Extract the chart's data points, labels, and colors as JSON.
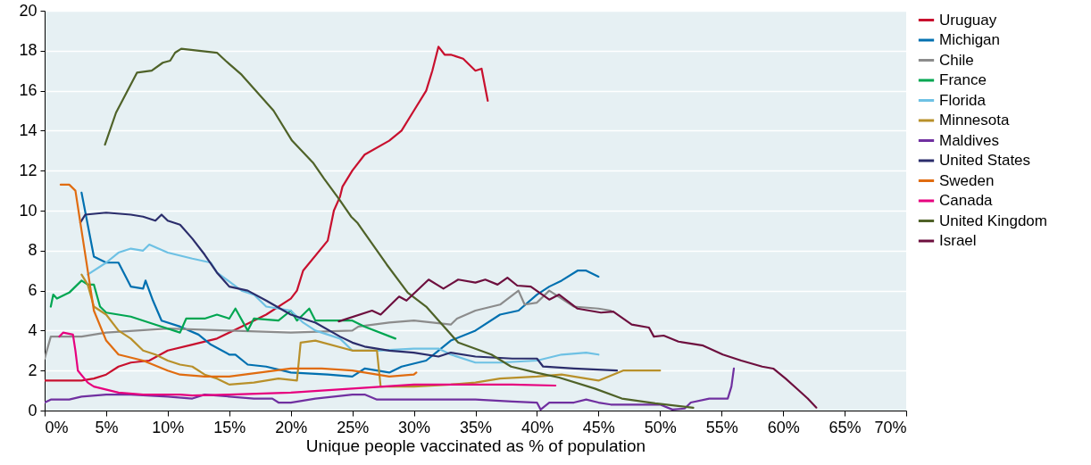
{
  "chart_data": {
    "type": "line",
    "xlabel": "Unique people vaccinated as % of population",
    "xlim": [
      0,
      70
    ],
    "ylim": [
      0,
      20
    ],
    "xticks": [
      {
        "value": 0,
        "label": "0%"
      },
      {
        "value": 5,
        "label": "5%"
      },
      {
        "value": 10,
        "label": "10%"
      },
      {
        "value": 15,
        "label": "15%"
      },
      {
        "value": 20,
        "label": "20%"
      },
      {
        "value": 25,
        "label": "25%"
      },
      {
        "value": 30,
        "label": "30%"
      },
      {
        "value": 35,
        "label": "35%"
      },
      {
        "value": 40,
        "label": "40%"
      },
      {
        "value": 45,
        "label": "45%"
      },
      {
        "value": 50,
        "label": "50%"
      },
      {
        "value": 55,
        "label": "55%"
      },
      {
        "value": 60,
        "label": "60%"
      },
      {
        "value": 65,
        "label": "65%"
      },
      {
        "value": 70,
        "label": "70%"
      }
    ],
    "yticks": [
      0,
      2,
      4,
      6,
      8,
      10,
      12,
      14,
      16,
      18,
      20
    ],
    "grid": "y",
    "legend": "top right",
    "marker": "none",
    "line_style": "solid",
    "series": [
      {
        "name": "Uruguay",
        "color": "#c8102e",
        "x": [
          0,
          3,
          4,
          5,
          6,
          7,
          8.5,
          10,
          12,
          14,
          16,
          18,
          20,
          20.5,
          21,
          23,
          23.5,
          24,
          24.2,
          25,
          26,
          28,
          29,
          30,
          31,
          31.5,
          32,
          32.5,
          33,
          34,
          35,
          35.5,
          36
        ],
        "values": [
          1.5,
          1.5,
          1.6,
          1.8,
          2.2,
          2.4,
          2.5,
          3.0,
          3.3,
          3.6,
          4.2,
          4.8,
          5.6,
          6.0,
          7.0,
          8.5,
          10.0,
          10.7,
          11.2,
          12.0,
          12.8,
          13.5,
          14.0,
          15.0,
          16.0,
          17.0,
          18.2,
          17.8,
          17.8,
          17.6,
          17.0,
          17.1,
          15.5
        ]
      },
      {
        "name": "Michigan",
        "color": "#0070b0",
        "x": [
          3,
          4,
          5,
          6,
          7,
          8,
          8.2,
          8.8,
          9.5,
          11,
          12.5,
          13.5,
          15,
          15.5,
          16.5,
          18,
          20,
          23,
          25,
          26,
          28,
          29,
          31,
          32,
          33,
          35,
          37,
          38.5,
          40,
          41,
          42,
          43.3,
          44,
          45
        ],
        "values": [
          10.9,
          7.7,
          7.4,
          7.4,
          6.2,
          6.1,
          6.5,
          5.5,
          4.5,
          4.2,
          3.8,
          3.3,
          2.8,
          2.8,
          2.3,
          2.2,
          1.9,
          1.8,
          1.7,
          2.1,
          1.9,
          2.2,
          2.5,
          3.0,
          3.5,
          4.0,
          4.8,
          5.0,
          5.8,
          6.2,
          6.5,
          7.0,
          7.0,
          6.7
        ]
      },
      {
        "name": "Chile",
        "color": "#8c8c8c",
        "x": [
          0,
          0.5,
          3,
          5,
          10,
          15,
          20,
          25,
          25.5,
          28,
          30,
          33,
          33.5,
          35,
          37,
          38.5,
          39,
          40,
          41,
          42,
          43,
          45,
          46
        ],
        "values": [
          2.6,
          3.7,
          3.7,
          3.9,
          4.1,
          4.0,
          3.9,
          4.0,
          4.2,
          4.4,
          4.5,
          4.3,
          4.6,
          5.0,
          5.3,
          6.0,
          5.3,
          5.4,
          6.0,
          5.6,
          5.2,
          5.1,
          5.0
        ]
      },
      {
        "name": "France",
        "color": "#00a651",
        "x": [
          0.5,
          0.7,
          1,
          2,
          3,
          3.5,
          4,
          4.5,
          5,
          7,
          9,
          11,
          11.5,
          13,
          14,
          15,
          15.5,
          16.5,
          17,
          19,
          20,
          20.5,
          21.5,
          22,
          25,
          26,
          28.5
        ],
        "values": [
          5.2,
          5.8,
          5.6,
          5.9,
          6.5,
          6.3,
          6.3,
          5.2,
          4.9,
          4.7,
          4.3,
          3.9,
          4.6,
          4.6,
          4.8,
          4.6,
          5.1,
          4.0,
          4.6,
          4.5,
          5.0,
          4.5,
          5.1,
          4.5,
          4.5,
          4.2,
          3.6
        ]
      },
      {
        "name": "Florida",
        "color": "#6ec1e4",
        "x": [
          3.5,
          5,
          6,
          7,
          8,
          8.5,
          10,
          12,
          13.5,
          14,
          16,
          17,
          18,
          20,
          21,
          22,
          24,
          25,
          27,
          30,
          32,
          33,
          35,
          37,
          40,
          42,
          44,
          45
        ],
        "values": [
          6.8,
          7.4,
          7.9,
          8.1,
          8.0,
          8.3,
          7.9,
          7.6,
          7.4,
          6.9,
          6.0,
          5.8,
          5.2,
          5.0,
          4.4,
          4.0,
          3.6,
          3.0,
          3.0,
          3.1,
          3.1,
          2.8,
          2.4,
          2.4,
          2.5,
          2.8,
          2.9,
          2.8
        ]
      },
      {
        "name": "Minnesota",
        "color": "#b8902a",
        "x": [
          3,
          3.5,
          4,
          5,
          6,
          7,
          8,
          9,
          10,
          11,
          12,
          13,
          14,
          15,
          17,
          19,
          20.5,
          20.8,
          22,
          25,
          27,
          27.3,
          30,
          33,
          35,
          37,
          40,
          42,
          45,
          47,
          48,
          50
        ],
        "values": [
          6.8,
          6.3,
          5.2,
          4.8,
          4.0,
          3.6,
          3.0,
          2.8,
          2.5,
          2.3,
          2.2,
          1.8,
          1.6,
          1.3,
          1.4,
          1.6,
          1.5,
          3.4,
          3.5,
          3.0,
          3.0,
          1.2,
          1.2,
          1.3,
          1.4,
          1.6,
          1.7,
          1.8,
          1.5,
          2.0,
          2.0,
          2.0
        ]
      },
      {
        "name": "Maldives",
        "color": "#7030a0",
        "x": [
          0,
          0.5,
          2,
          3,
          5,
          7,
          10,
          12,
          13,
          15,
          17,
          18.5,
          19,
          20,
          22,
          25,
          26,
          27,
          30,
          35,
          38,
          40,
          40.3,
          41,
          43,
          44,
          45,
          46,
          50,
          51,
          52,
          52.5,
          54,
          55,
          55.5,
          55.8,
          56
        ],
        "values": [
          0.4,
          0.55,
          0.55,
          0.7,
          0.8,
          0.8,
          0.7,
          0.6,
          0.8,
          0.7,
          0.6,
          0.6,
          0.4,
          0.4,
          0.6,
          0.8,
          0.8,
          0.55,
          0.55,
          0.55,
          0.45,
          0.4,
          0.05,
          0.4,
          0.4,
          0.55,
          0.4,
          0.3,
          0.3,
          0.05,
          0.1,
          0.4,
          0.6,
          0.6,
          0.6,
          1.2,
          2.1
        ]
      },
      {
        "name": "United States",
        "color": "#2b2d6b",
        "x": [
          2.9,
          3.3,
          5,
          7,
          8,
          9,
          9.5,
          10,
          11,
          12,
          13,
          14,
          15,
          16.5,
          18,
          20,
          22,
          24,
          25,
          26,
          28,
          30,
          32,
          33,
          35,
          38,
          40,
          40.5,
          43,
          46.5
        ],
        "values": [
          9.4,
          9.8,
          9.9,
          9.8,
          9.7,
          9.5,
          9.8,
          9.5,
          9.3,
          8.6,
          7.8,
          6.9,
          6.2,
          6.0,
          5.5,
          4.8,
          4.4,
          3.7,
          3.4,
          3.2,
          3.0,
          2.9,
          2.7,
          2.9,
          2.7,
          2.6,
          2.6,
          2.2,
          2.1,
          2.0
        ]
      },
      {
        "name": "Sweden",
        "color": "#e06c10",
        "x": [
          1.3,
          2,
          2.5,
          3,
          3.5,
          4,
          5,
          6,
          8,
          10,
          11,
          13,
          15,
          20,
          22.5,
          25,
          27,
          28,
          30,
          30.2
        ],
        "values": [
          11.3,
          11.3,
          11.0,
          9.0,
          7.0,
          5.0,
          3.5,
          2.8,
          2.5,
          2.0,
          1.8,
          1.7,
          1.7,
          2.1,
          2.1,
          2.0,
          1.8,
          1.7,
          1.8,
          1.9
        ]
      },
      {
        "name": "Canada",
        "color": "#e6007e",
        "x": [
          1.2,
          1.5,
          2.3,
          2.5,
          2.7,
          3.5,
          4,
          6,
          8,
          11,
          12,
          15,
          20,
          25,
          30,
          35,
          38,
          41.5
        ],
        "values": [
          3.7,
          3.9,
          3.8,
          3.0,
          2.0,
          1.4,
          1.2,
          0.9,
          0.8,
          0.8,
          0.75,
          0.8,
          0.9,
          1.1,
          1.3,
          1.3,
          1.3,
          1.25
        ]
      },
      {
        "name": "United Kingdom",
        "color": "#4f6228",
        "x": [
          4.9,
          5.8,
          7.5,
          8.7,
          9.6,
          10.2,
          10.6,
          11.1,
          14,
          14.7,
          16,
          18.6,
          20.1,
          21.8,
          22.7,
          23.9,
          24.9,
          25.4,
          27.8,
          29.5,
          31,
          33.6,
          36.3,
          37.9,
          39.9,
          41.8,
          44.7,
          46.9,
          49.6,
          52.7
        ],
        "values": [
          13.3,
          14.9,
          16.9,
          17.0,
          17.4,
          17.5,
          17.9,
          18.1,
          17.9,
          17.5,
          16.8,
          15.0,
          13.5,
          12.4,
          11.6,
          10.6,
          9.7,
          9.4,
          7.3,
          5.9,
          5.2,
          3.4,
          2.8,
          2.2,
          1.9,
          1.65,
          1.1,
          0.6,
          0.36,
          0.14
        ]
      },
      {
        "name": "Israel",
        "color": "#6d0f3e",
        "x": [
          23.9,
          26.6,
          27.3,
          28.8,
          29.4,
          31.2,
          32.4,
          33.6,
          35,
          35.8,
          36.8,
          37.6,
          38.4,
          39.5,
          41,
          41.8,
          43.3,
          45.2,
          46.2,
          47.7,
          49.1,
          49.5,
          50.3,
          51.5,
          53.5,
          55.1,
          56.6,
          58.3,
          59.2,
          60.2,
          61.2,
          62,
          62.7
        ],
        "values": [
          4.46,
          5.0,
          4.8,
          5.7,
          5.5,
          6.55,
          6.1,
          6.55,
          6.4,
          6.55,
          6.3,
          6.65,
          6.25,
          6.2,
          5.55,
          5.8,
          5.1,
          4.9,
          4.95,
          4.3,
          4.15,
          3.7,
          3.75,
          3.45,
          3.25,
          2.8,
          2.5,
          2.2,
          2.1,
          1.6,
          1.05,
          0.6,
          0.15
        ]
      }
    ]
  }
}
